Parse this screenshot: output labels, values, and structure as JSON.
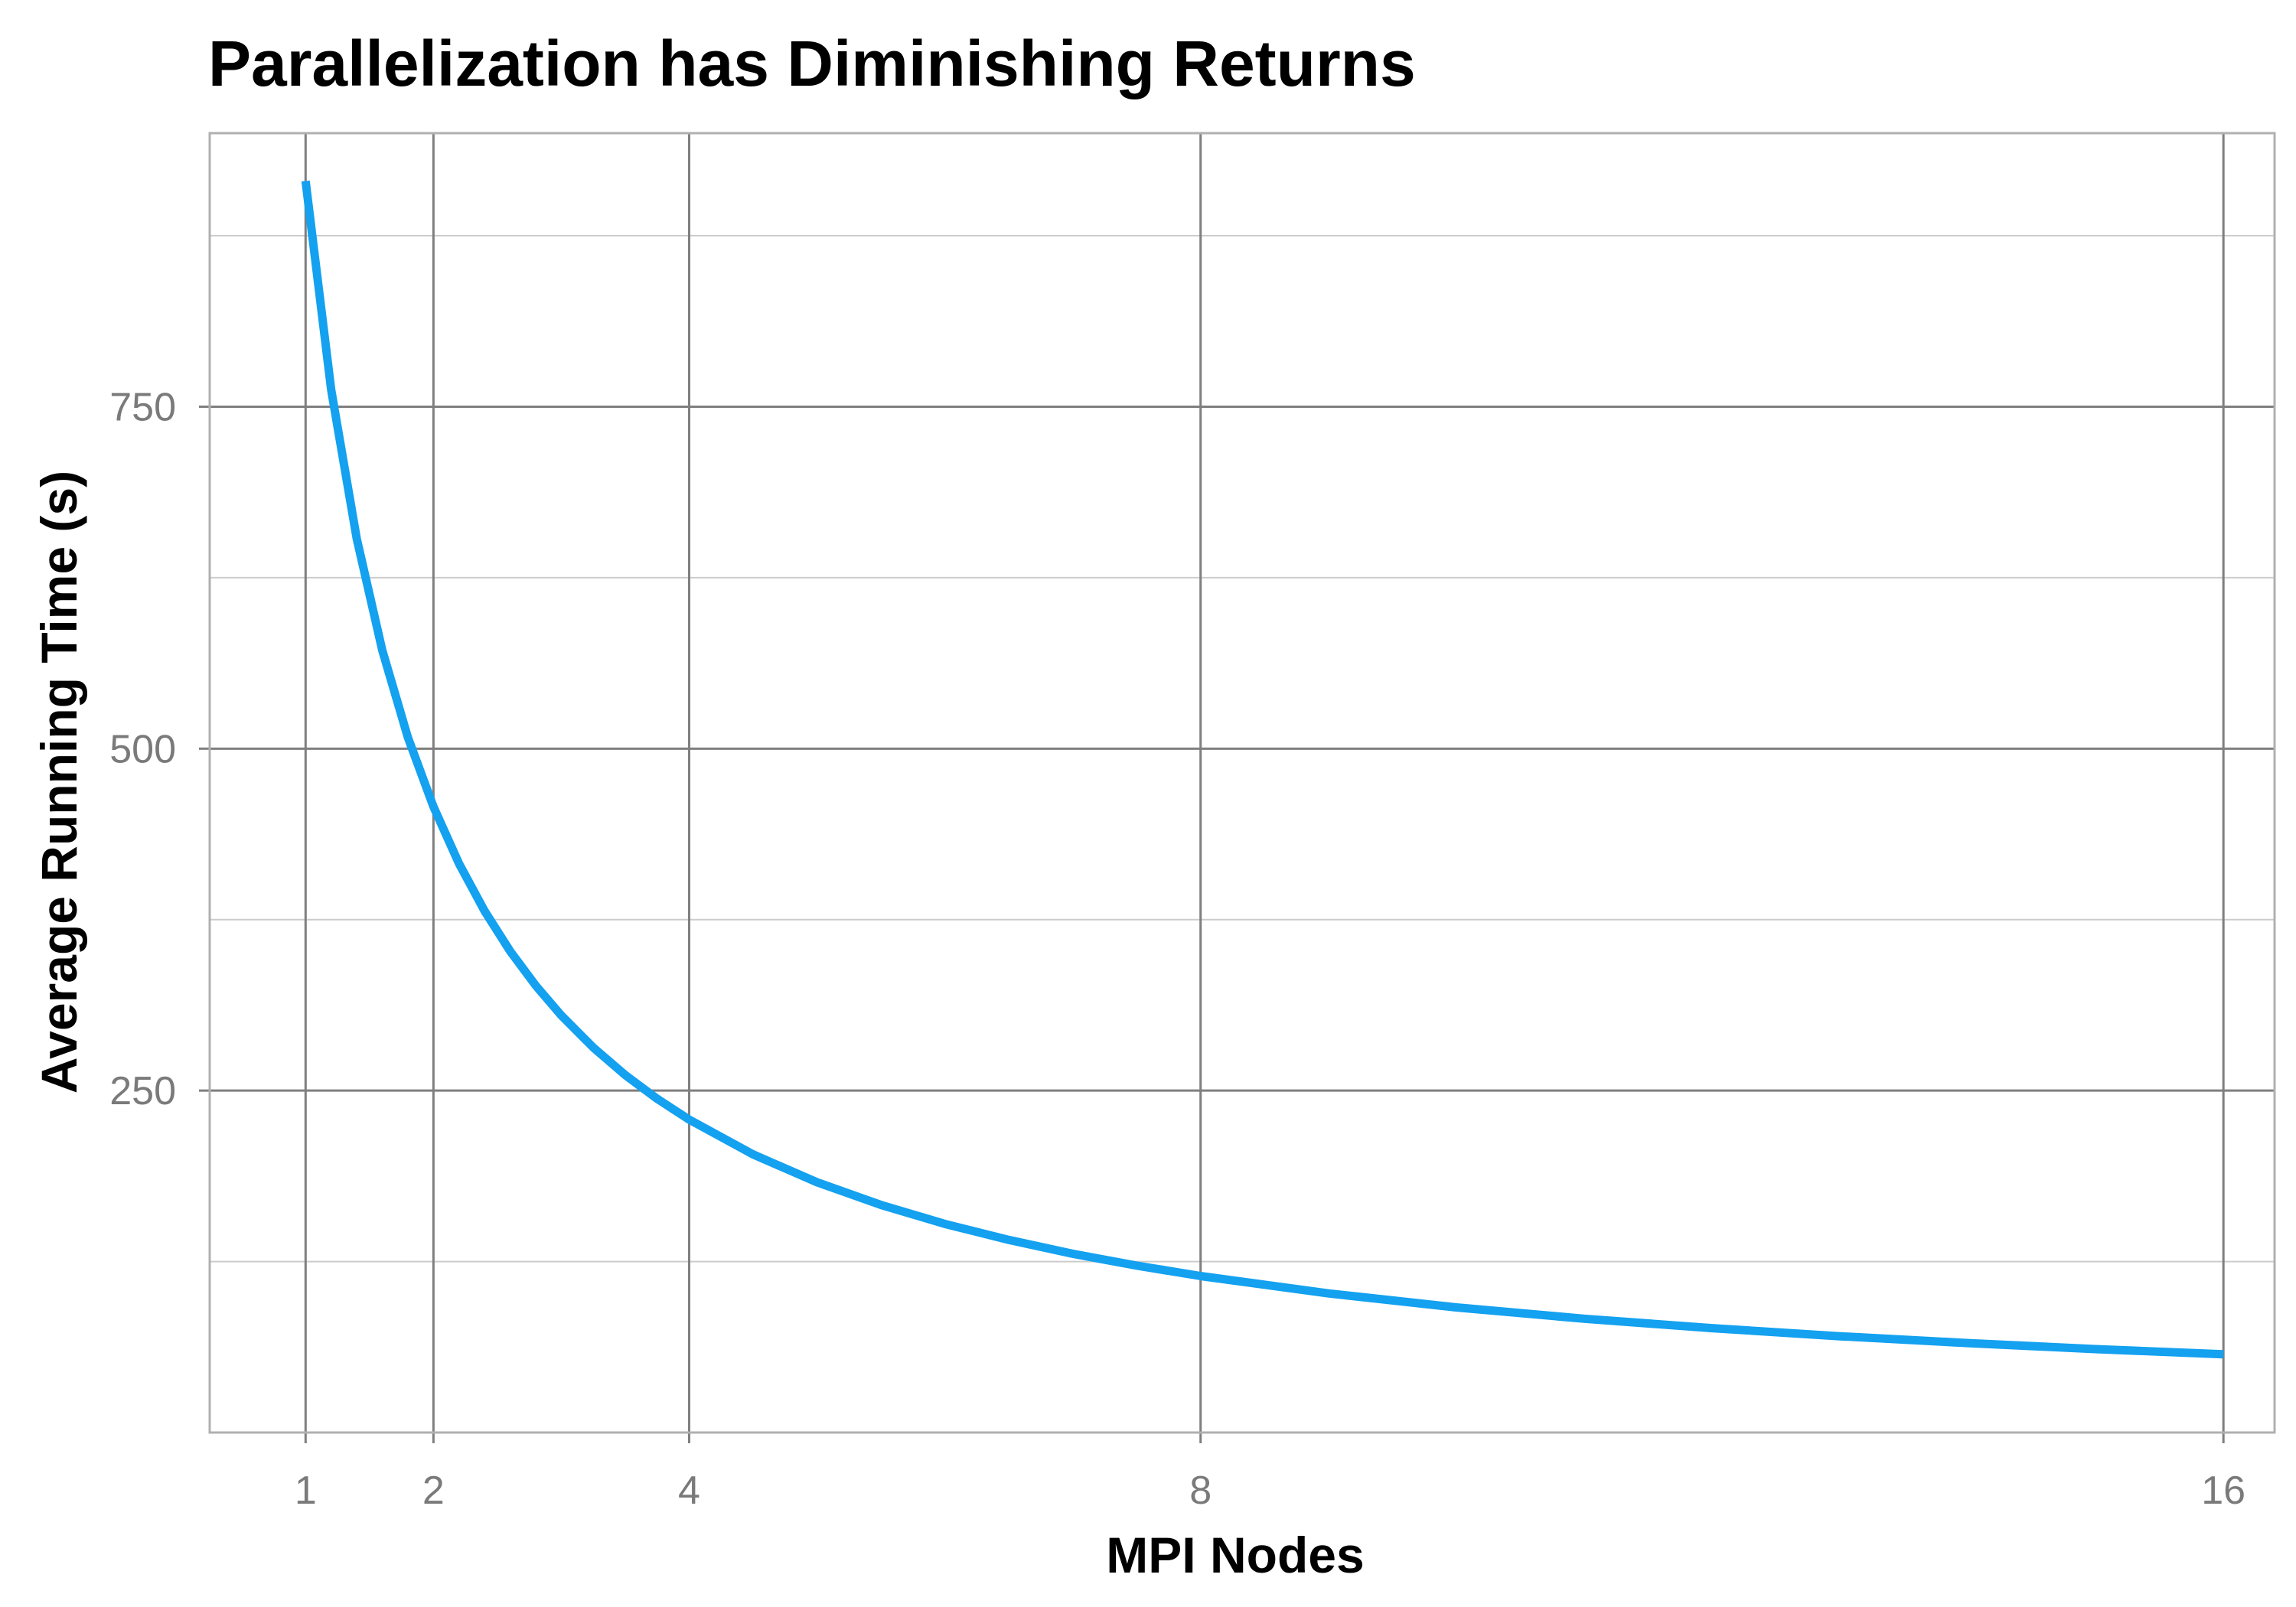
{
  "chart_data": {
    "type": "line",
    "title": "Parallelization has Diminishing Returns",
    "xlabel": "MPI Nodes",
    "ylabel": "Average Running Time (s)",
    "x_ticks": [
      1,
      2,
      4,
      8,
      16
    ],
    "x_tick_labels": [
      "1",
      "2",
      "4",
      "8",
      "16"
    ],
    "y_ticks": [
      250,
      500,
      750
    ],
    "y_tick_labels": [
      "250",
      "500",
      "750"
    ],
    "y_minor_ticks": [
      125,
      375,
      625,
      875
    ],
    "xlim": [
      0.25,
      16.4
    ],
    "ylim": [
      0,
      950
    ],
    "grid": true,
    "series": [
      {
        "x": [
          1,
          1.2,
          1.4,
          1.6,
          1.8,
          2,
          2.2,
          2.4,
          2.6,
          2.8,
          3,
          3.25,
          3.5,
          3.75,
          4,
          4.5,
          5,
          5.5,
          6,
          6.5,
          7,
          7.5,
          8,
          9,
          10,
          11,
          12,
          13,
          14,
          15,
          16
        ],
        "y": [
          915,
          762.5,
          653.6,
          571.9,
          508.3,
          457.5,
          415.9,
          381.3,
          351.9,
          326.8,
          305,
          281.5,
          261.4,
          244,
          228.8,
          203.3,
          183,
          166.4,
          152.5,
          140.8,
          130.7,
          122,
          114.4,
          101.7,
          91.5,
          83.2,
          76.3,
          70.4,
          65.4,
          61,
          57.2
        ]
      }
    ],
    "colors": {
      "line": "#13a1f0",
      "major_grid": "#7f7f7f",
      "minor_grid": "#cccccc",
      "panel_border": "#b0b0b0",
      "tick_text": "#7a7a7a"
    }
  }
}
